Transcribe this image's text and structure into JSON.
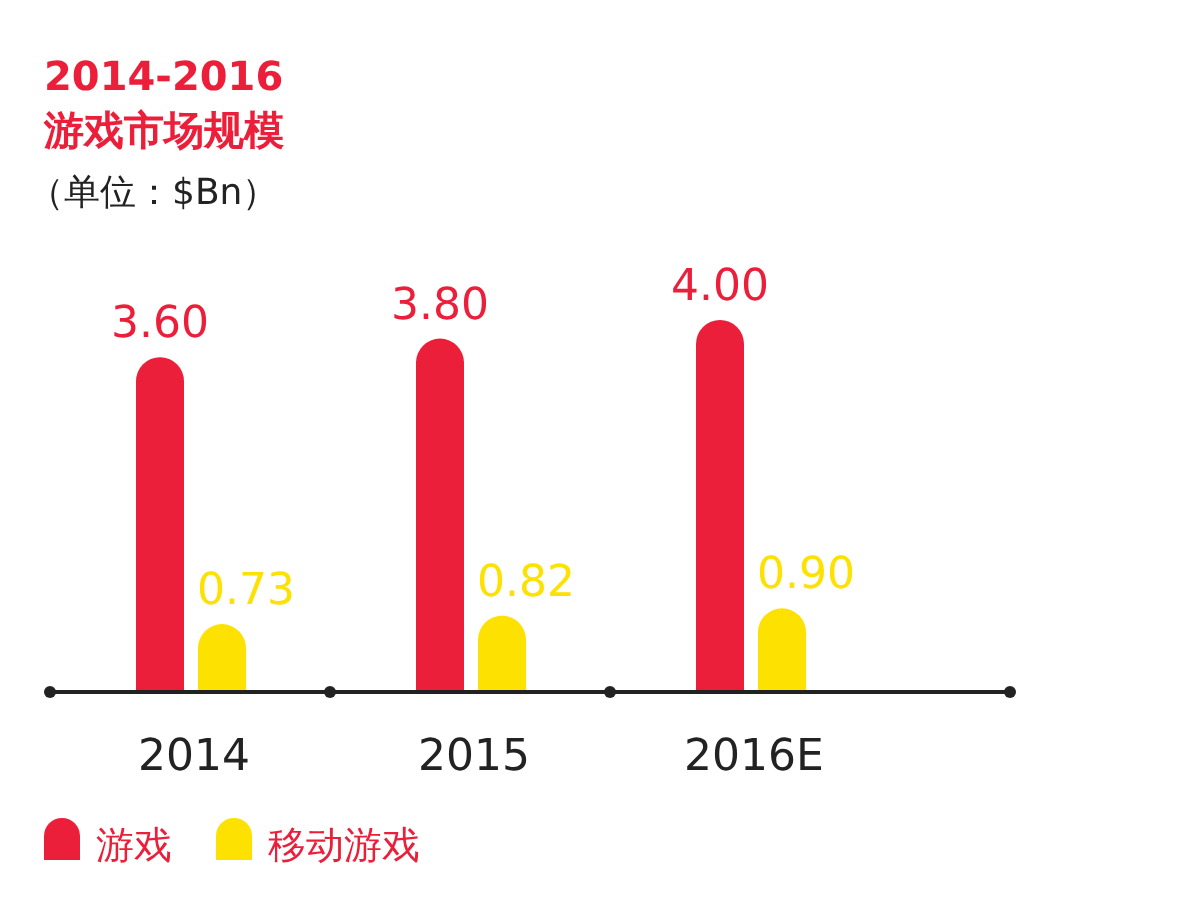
{
  "chart_data": {
    "type": "bar",
    "title": "2014-2016",
    "subtitle": "游戏市场规模",
    "annotations": [
      "（单位：$Bn）"
    ],
    "categories": [
      "2014",
      "2015",
      "2016E"
    ],
    "series": [
      {
        "name": "游戏",
        "color": "#ec1f3b",
        "values": [
          3.6,
          3.8,
          4.0
        ],
        "value_labels": [
          "3.60",
          "3.80",
          "4.00"
        ]
      },
      {
        "name": "移动游戏",
        "color": "#fde100",
        "values": [
          0.73,
          0.82,
          0.9
        ],
        "value_labels": [
          "0.73",
          "0.82",
          "0.90"
        ]
      }
    ],
    "legend": "bottom left"
  }
}
